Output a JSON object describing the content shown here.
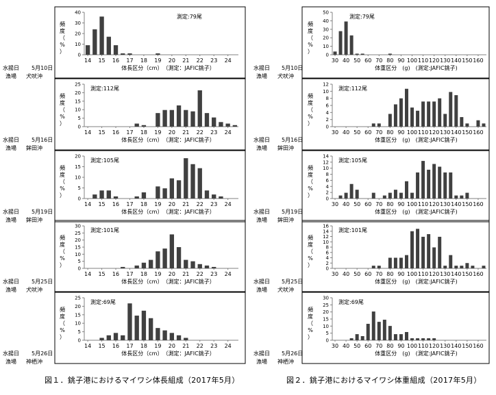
{
  "captions": {
    "left": "図１．銚子港におけるマイワシ体長組成（2017年5月）",
    "right": "図２．銚子港におけるマイワシ体重組成（2017年5月）"
  },
  "meta_labels": {
    "landing_date": "水揚日",
    "fishing_ground": "漁場",
    "ylabel_chars": [
      "頻",
      "度",
      "（",
      "%",
      "）"
    ]
  },
  "samples": [
    {
      "date": "5月10日",
      "ground": "犬吠沖"
    },
    {
      "date": "5月16日",
      "ground": "鉾田沖"
    },
    {
      "date": "5月19日",
      "ground": "鉾田沖"
    },
    {
      "date": "5月25日",
      "ground": "犬吠沖"
    },
    {
      "date": "5月26日",
      "ground": "神栖沖"
    }
  ],
  "colors": {
    "bar": "#404040",
    "axis": "#808080",
    "frame": "#000000"
  },
  "chart_data": [
    {
      "figure": "length",
      "type": "bar",
      "title": "測定:79尾",
      "xlabel": "体長区分（cm）　（測定：JAFIC銚子）",
      "ylabel": "頻度（%）",
      "ylim": [
        0,
        40
      ],
      "yticks": [
        0,
        10,
        20,
        30,
        40
      ],
      "x": [
        14,
        14.5,
        15,
        15.5,
        16,
        16.5,
        17,
        17.5,
        18,
        18.5,
        19,
        19.5,
        20,
        20.5,
        21,
        21.5,
        22,
        22.5,
        23,
        23.5,
        24,
        24.5
      ],
      "xtick_labels": [
        "14",
        "15",
        "16",
        "17",
        "18",
        "19",
        "20",
        "21",
        "22",
        "23",
        "24"
      ],
      "values": [
        9,
        24,
        36,
        17,
        9,
        1.3,
        1.3,
        0,
        0,
        0,
        1.3,
        0,
        0,
        0,
        0,
        0,
        0,
        0,
        0,
        0,
        0,
        0
      ]
    },
    {
      "figure": "length",
      "type": "bar",
      "title": "測定:112尾",
      "xlabel": "体長区分（cm）　（測定：JAFIC銚子）",
      "ylabel": "頻度（%）",
      "ylim": [
        0,
        25
      ],
      "yticks": [
        0,
        5,
        10,
        15,
        20,
        25
      ],
      "x": [
        14,
        14.5,
        15,
        15.5,
        16,
        16.5,
        17,
        17.5,
        18,
        18.5,
        19,
        19.5,
        20,
        20.5,
        21,
        21.5,
        22,
        22.5,
        23,
        23.5,
        24,
        24.5
      ],
      "xtick_labels": [
        "14",
        "15",
        "16",
        "17",
        "18",
        "19",
        "20",
        "21",
        "22",
        "23",
        "24"
      ],
      "values": [
        0,
        0,
        0,
        0,
        0,
        0,
        0,
        1.8,
        0.9,
        0,
        8,
        9.8,
        9.8,
        12.5,
        9.8,
        9,
        21.4,
        8,
        5.4,
        2.7,
        1.8,
        0.9
      ]
    },
    {
      "figure": "length",
      "type": "bar",
      "title": "測定:105尾",
      "xlabel": "体長区分（cm）　（測定：JAFIC銚子）",
      "ylabel": "頻度（%）",
      "ylim": [
        0,
        20
      ],
      "yticks": [
        0,
        5,
        10,
        15,
        20
      ],
      "x": [
        14,
        14.5,
        15,
        15.5,
        16,
        16.5,
        17,
        17.5,
        18,
        18.5,
        19,
        19.5,
        20,
        20.5,
        21,
        21.5,
        22,
        22.5,
        23,
        23.5,
        24,
        24.5
      ],
      "xtick_labels": [
        "14",
        "15",
        "16",
        "17",
        "18",
        "19",
        "20",
        "21",
        "22",
        "23",
        "24"
      ],
      "values": [
        0,
        1.9,
        3.8,
        3.8,
        1,
        0,
        0,
        1,
        2.9,
        0,
        5.7,
        4.8,
        9.5,
        8.6,
        19,
        16.2,
        14.3,
        3.8,
        1.9,
        1,
        0,
        0
      ]
    },
    {
      "figure": "length",
      "type": "bar",
      "title": "測定:101尾",
      "xlabel": "体長区分（cm）　（測定：JAFIC銚子）",
      "ylabel": "頻度（%）",
      "ylim": [
        0,
        30
      ],
      "yticks": [
        0,
        5,
        10,
        15,
        20,
        25,
        30
      ],
      "x": [
        14,
        14.5,
        15,
        15.5,
        16,
        16.5,
        17,
        17.5,
        18,
        18.5,
        19,
        19.5,
        20,
        20.5,
        21,
        21.5,
        22,
        22.5,
        23,
        23.5,
        24,
        24.5
      ],
      "xtick_labels": [
        "14",
        "15",
        "16",
        "17",
        "18",
        "19",
        "20",
        "21",
        "22",
        "23",
        "24"
      ],
      "values": [
        0,
        0,
        0,
        0,
        0,
        1,
        0,
        2,
        4,
        6,
        12,
        14,
        24,
        15,
        6,
        5,
        3,
        2,
        1,
        0,
        0,
        0
      ]
    },
    {
      "figure": "length",
      "type": "bar",
      "title": "測定:69尾",
      "xlabel": "体長区分（cm）　（測定：JAFIC銚子）",
      "ylabel": "頻度（%）",
      "ylim": [
        0,
        25
      ],
      "yticks": [
        0,
        5,
        10,
        15,
        20,
        25
      ],
      "x": [
        14,
        14.5,
        15,
        15.5,
        16,
        16.5,
        17,
        17.5,
        18,
        18.5,
        19,
        19.5,
        20,
        20.5,
        21,
        21.5,
        22,
        22.5,
        23,
        23.5,
        24,
        24.5
      ],
      "xtick_labels": [
        "14",
        "15",
        "16",
        "17",
        "18",
        "19",
        "20",
        "21",
        "22",
        "23",
        "24"
      ],
      "values": [
        0,
        0,
        1.4,
        2.9,
        4.3,
        2.9,
        21.7,
        14.5,
        17.4,
        13,
        7.2,
        5.8,
        4.3,
        2.9,
        1.4,
        0,
        0,
        0,
        0,
        0,
        0,
        0
      ]
    },
    {
      "figure": "weight",
      "type": "bar",
      "title": "測定:79尾",
      "xlabel": "体重区分　(g)　(測定:JAFIC銚子)",
      "ylabel": "頻度（%）",
      "ylim": [
        0,
        50
      ],
      "yticks": [
        0,
        10,
        20,
        30,
        40,
        50
      ],
      "x": [
        30,
        35,
        40,
        45,
        50,
        55,
        60,
        65,
        70,
        75,
        80,
        85,
        90,
        95,
        100,
        105,
        110,
        115,
        120,
        125,
        130,
        135,
        140,
        145,
        150,
        155,
        160,
        165
      ],
      "xtick_labels": [
        "30",
        "40",
        "50",
        "60",
        "70",
        "80",
        "90",
        "100",
        "110",
        "120",
        "130",
        "140",
        "150",
        "160"
      ],
      "values": [
        3.8,
        27.8,
        39.2,
        22.8,
        1.3,
        1.3,
        0,
        0,
        0,
        0,
        1.3,
        0,
        0,
        0,
        0,
        0,
        0,
        0,
        0,
        0,
        0,
        0,
        0,
        0,
        0,
        0,
        0,
        0
      ]
    },
    {
      "figure": "weight",
      "type": "bar",
      "title": "測定:112尾",
      "xlabel": "体重区分　(g)　(測定:JAFIC銚子)",
      "ylabel": "頻度（%）",
      "ylim": [
        0,
        12
      ],
      "yticks": [
        0,
        2,
        4,
        6,
        8,
        10,
        12
      ],
      "x": [
        30,
        35,
        40,
        45,
        50,
        55,
        60,
        65,
        70,
        75,
        80,
        85,
        90,
        95,
        100,
        105,
        110,
        115,
        120,
        125,
        130,
        135,
        140,
        145,
        150,
        155,
        160,
        165
      ],
      "xtick_labels": [
        "30",
        "40",
        "50",
        "60",
        "70",
        "80",
        "90",
        "100",
        "110",
        "120",
        "130",
        "140",
        "150",
        "160"
      ],
      "values": [
        0,
        0,
        0,
        0,
        0,
        0,
        0,
        0.9,
        0.9,
        0,
        3.6,
        6.3,
        8,
        10.7,
        5.4,
        4.5,
        7.1,
        7.1,
        7.1,
        8,
        3.6,
        9.8,
        8.9,
        2.7,
        0.9,
        0,
        1.8,
        0.9
      ]
    },
    {
      "figure": "weight",
      "type": "bar",
      "title": "測定:105尾",
      "xlabel": "体重区分　(g)　(測定:JAFIC銚子)",
      "ylabel": "頻度（%）",
      "ylim": [
        0,
        14
      ],
      "yticks": [
        0,
        2,
        4,
        6,
        8,
        10,
        12,
        14
      ],
      "x": [
        30,
        35,
        40,
        45,
        50,
        55,
        60,
        65,
        70,
        75,
        80,
        85,
        90,
        95,
        100,
        105,
        110,
        115,
        120,
        125,
        130,
        135,
        140,
        145,
        150,
        155,
        160,
        165
      ],
      "xtick_labels": [
        "30",
        "40",
        "50",
        "60",
        "70",
        "80",
        "90",
        "100",
        "110",
        "120",
        "130",
        "140",
        "150",
        "160"
      ],
      "values": [
        0,
        1,
        1.9,
        4.8,
        2.9,
        0,
        0,
        1.9,
        0,
        1,
        1.9,
        2.9,
        1.9,
        5.7,
        1.9,
        8.6,
        12.4,
        9.5,
        11.4,
        10.5,
        8.6,
        8.6,
        1,
        1,
        1.9,
        0,
        0,
        0
      ]
    },
    {
      "figure": "weight",
      "type": "bar",
      "title": "測定:101尾",
      "xlabel": "体重区分　(g)　(測定:JAFIC銚子)",
      "ylabel": "頻度（%）",
      "ylim": [
        0,
        16
      ],
      "yticks": [
        0,
        2,
        4,
        6,
        8,
        10,
        12,
        14,
        16
      ],
      "x": [
        30,
        35,
        40,
        45,
        50,
        55,
        60,
        65,
        70,
        75,
        80,
        85,
        90,
        95,
        100,
        105,
        110,
        115,
        120,
        125,
        130,
        135,
        140,
        145,
        150,
        155,
        160,
        165
      ],
      "xtick_labels": [
        "30",
        "40",
        "50",
        "60",
        "70",
        "80",
        "90",
        "100",
        "110",
        "120",
        "130",
        "140",
        "150",
        "160"
      ],
      "values": [
        0,
        0,
        0,
        0,
        0,
        0,
        0,
        1,
        1,
        0,
        4,
        4,
        4,
        5,
        14,
        14.9,
        11.9,
        12.9,
        7.9,
        11.9,
        1,
        5,
        1,
        1,
        2,
        1,
        0,
        1
      ]
    },
    {
      "figure": "weight",
      "type": "bar",
      "title": "測定:69尾",
      "xlabel": "体重区分　(g)　(測定:JAFIC銚子)",
      "ylabel": "頻度（%）",
      "ylim": [
        0,
        30
      ],
      "yticks": [
        0,
        5,
        10,
        15,
        20,
        25,
        30
      ],
      "x": [
        30,
        35,
        40,
        45,
        50,
        55,
        60,
        65,
        70,
        75,
        80,
        85,
        90,
        95,
        100,
        105,
        110,
        115,
        120,
        125,
        130,
        135,
        140,
        145,
        150,
        155,
        160,
        165
      ],
      "xtick_labels": [
        "30",
        "40",
        "50",
        "60",
        "70",
        "80",
        "90",
        "100",
        "110",
        "120",
        "130",
        "140",
        "150",
        "160"
      ],
      "values": [
        0,
        0,
        0,
        1.4,
        4.3,
        2.9,
        11.6,
        20.3,
        13,
        14.5,
        10.1,
        4.3,
        4.3,
        5.8,
        1.4,
        1.4,
        1.4,
        1.4,
        1.4,
        0,
        0,
        0,
        0,
        0,
        0,
        0,
        0,
        0
      ]
    }
  ]
}
